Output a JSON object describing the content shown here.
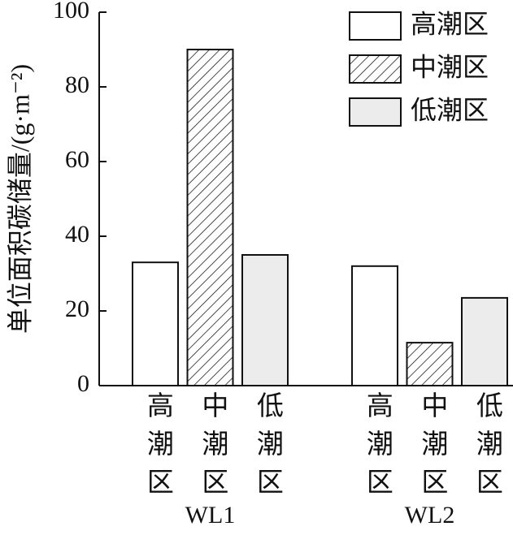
{
  "chart_data": {
    "type": "bar",
    "ylabel": "单位面积碳储量/(g·m⁻²)",
    "categories": [
      "WL1",
      "WL2"
    ],
    "series": [
      {
        "name": "高潮区",
        "color": "#ffffff",
        "values": [
          33,
          32
        ]
      },
      {
        "name": "中潮区",
        "color": "#ffffff",
        "pattern": "hatch",
        "values": [
          90,
          11.5
        ]
      },
      {
        "name": "低潮区",
        "color": "#ececec",
        "values": [
          35,
          23.5
        ]
      }
    ],
    "ylim": [
      0,
      100
    ],
    "yticks": [
      0,
      20,
      40,
      60,
      80,
      100
    ],
    "legend": "upper right"
  }
}
